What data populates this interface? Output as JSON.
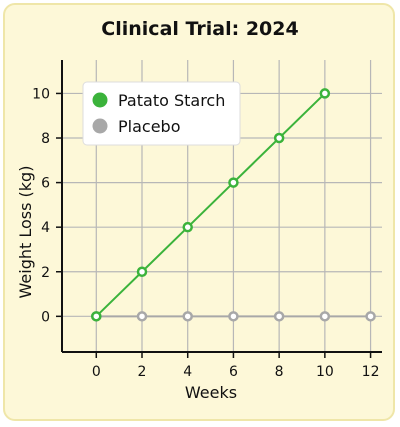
{
  "chart_data": {
    "type": "line",
    "title": "Clinical Trial: 2024",
    "xlabel": "Weeks",
    "ylabel": "Weight Loss (kg)",
    "x_ticks": [
      0,
      2,
      4,
      6,
      8,
      10,
      12
    ],
    "y_ticks": [
      0,
      2,
      4,
      6,
      8,
      10
    ],
    "xlim": [
      -1.5,
      12.5
    ],
    "ylim": [
      -1.6,
      11.5
    ],
    "grid": true,
    "legend_position": "top-left",
    "series": [
      {
        "name": "Patato Starch",
        "color": "#3bb33b",
        "x": [
          0,
          2,
          4,
          6,
          8,
          10
        ],
        "y": [
          0,
          2,
          4,
          6,
          8,
          10
        ]
      },
      {
        "name": "Placebo",
        "color": "#a8a8a8",
        "x": [
          0,
          2,
          4,
          6,
          8,
          10,
          12
        ],
        "y": [
          0,
          0,
          0,
          0,
          0,
          0,
          0
        ]
      }
    ]
  }
}
